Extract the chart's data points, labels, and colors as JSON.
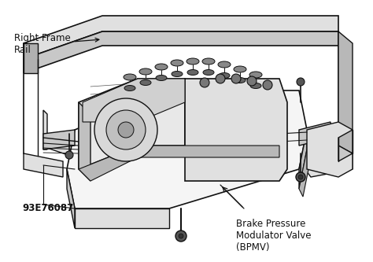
{
  "bg_color": "#ffffff",
  "line_color": "#111111",
  "figsize": [
    4.74,
    3.33
  ],
  "dpi": 100,
  "label_right_frame_rail": "Right Frame\nRail",
  "label_bpmv_line1": "Brake Pressure",
  "label_bpmv_line2": "Modulator Valve",
  "label_bpmv_line3": "(BPMV)",
  "part_number": "93E76087",
  "gray_fill": "#c8c8c8",
  "light_gray": "#e0e0e0",
  "mid_gray": "#a0a0a0"
}
